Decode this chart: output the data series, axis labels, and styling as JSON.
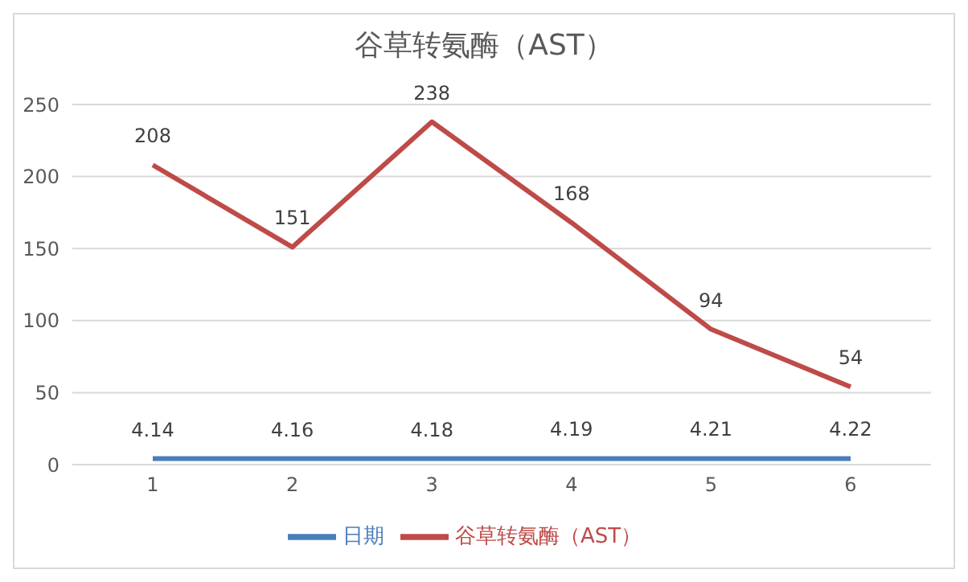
{
  "chart_data": {
    "type": "line",
    "title": "谷草转氨酶（AST）",
    "categories": [
      "1",
      "2",
      "3",
      "4",
      "5",
      "6"
    ],
    "series": [
      {
        "name": "日期",
        "color": "#4a7ebb",
        "values": [
          4.14,
          4.16,
          4.18,
          4.19,
          4.21,
          4.22
        ]
      },
      {
        "name": "谷草转氨酶（AST）",
        "color": "#be4b48",
        "values": [
          208,
          151,
          238,
          168,
          94,
          54
        ]
      }
    ],
    "ylim": [
      0,
      250
    ],
    "yticks": [
      0,
      50,
      100,
      150,
      200,
      250
    ],
    "grid": "y",
    "legend": "bottom",
    "data_labels": true,
    "marker": "none",
    "line_style": "solid"
  }
}
